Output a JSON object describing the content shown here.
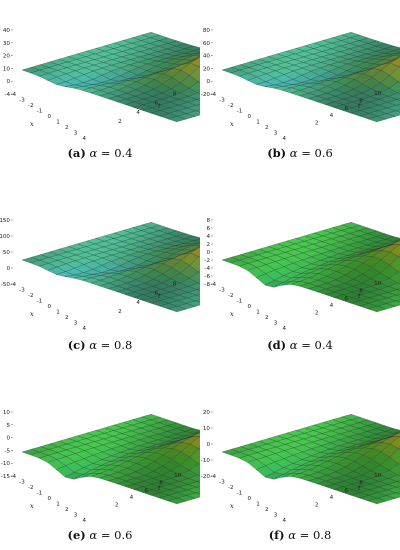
{
  "panels": [
    {
      "id": "a",
      "label": "(a)",
      "alpha_symbol": "α",
      "alpha_value": "0.4",
      "colormap": "rainbow",
      "z_ticks": [
        "40",
        "30",
        "20",
        "10",
        "0",
        "-4"
      ],
      "x_ticks": [
        "-4",
        "-3",
        "-2",
        "-1",
        "0",
        "1",
        "2",
        "3",
        "4"
      ],
      "t_ticks": [
        "2",
        "4",
        "6",
        "8"
      ],
      "x_label": "x",
      "t_label": "t"
    },
    {
      "id": "b",
      "label": "(b)",
      "alpha_symbol": "α",
      "alpha_value": "0.6",
      "colormap": "rainbow",
      "z_ticks": [
        "80",
        "60",
        "40",
        "20",
        "0",
        "-20"
      ],
      "x_ticks": [
        "-4",
        "-3",
        "-2",
        "-1",
        "0",
        "1",
        "2",
        "3",
        "4"
      ],
      "t_ticks": [
        "2",
        "4",
        "6",
        "8",
        "10"
      ],
      "x_label": "x",
      "t_label": "t"
    },
    {
      "id": "c",
      "label": "(c)",
      "alpha_symbol": "α",
      "alpha_value": "0.8",
      "colormap": "rainbow",
      "z_ticks": [
        "150",
        "100",
        "50",
        "0",
        "-50"
      ],
      "x_ticks": [
        "-4",
        "-3",
        "-2",
        "-1",
        "0",
        "1",
        "2",
        "3",
        "4"
      ],
      "t_ticks": [
        "2",
        "4",
        "6",
        "8"
      ],
      "x_label": "x",
      "t_label": "t"
    },
    {
      "id": "d",
      "label": "(d)",
      "alpha_symbol": "α",
      "alpha_value": "0.4",
      "colormap": "green-red",
      "z_ticks": [
        "8",
        "6",
        "4",
        "2",
        "0",
        "-2",
        "-4",
        "-6",
        "-8"
      ],
      "x_ticks": [
        "-4",
        "-3",
        "-2",
        "-1",
        "0",
        "1",
        "2",
        "3",
        "4"
      ],
      "t_ticks": [
        "2",
        "4",
        "6",
        "8",
        "10"
      ],
      "x_label": "x",
      "t_label": "t"
    },
    {
      "id": "e",
      "label": "(e)",
      "alpha_symbol": "α",
      "alpha_value": "0.6",
      "colormap": "green-red",
      "z_ticks": [
        "10",
        "5",
        "0",
        "-5",
        "-10",
        "-15"
      ],
      "x_ticks": [
        "-4",
        "-3",
        "-2",
        "-1",
        "0",
        "1",
        "2",
        "3",
        "4"
      ],
      "t_ticks": [
        "2",
        "4",
        "6",
        "8",
        "10"
      ],
      "x_label": "x",
      "t_label": "t"
    },
    {
      "id": "f",
      "label": "(f)",
      "alpha_symbol": "α",
      "alpha_value": "0.8",
      "colormap": "green-red",
      "z_ticks": [
        "20",
        "10",
        "0",
        "-10",
        "-20"
      ],
      "x_ticks": [
        "-4",
        "-3",
        "-2",
        "-1",
        "0",
        "1",
        "2",
        "3",
        "4"
      ],
      "t_ticks": [
        "2",
        "4",
        "6",
        "8",
        "10"
      ],
      "x_label": "x",
      "t_label": "t"
    }
  ]
}
